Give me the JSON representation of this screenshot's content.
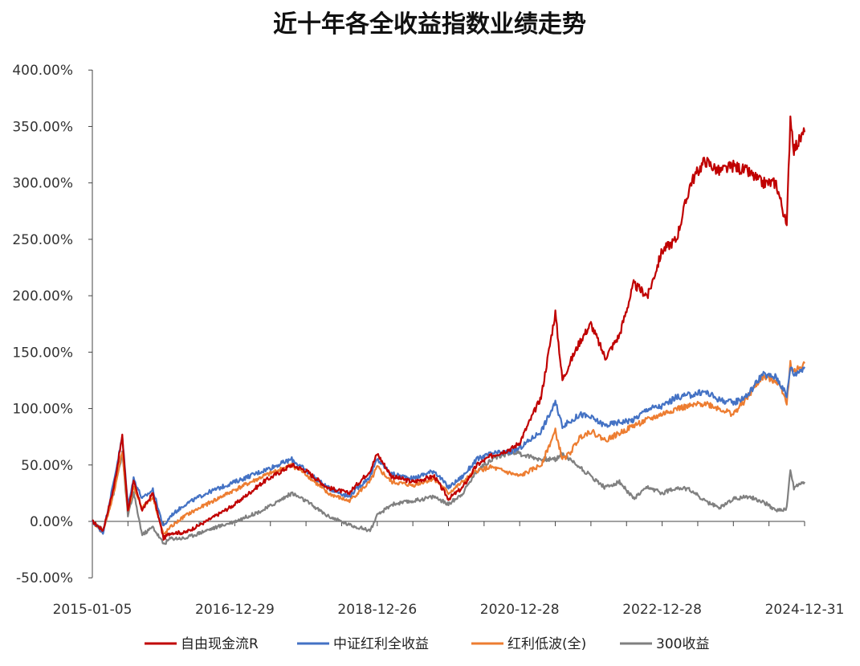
{
  "chart_data": {
    "type": "line",
    "title": "近十年各全收益指数业绩走势",
    "xlabel": "",
    "ylabel": "",
    "ylim": [
      -50,
      400
    ],
    "y_ticks": [
      -50,
      0,
      50,
      100,
      150,
      200,
      250,
      300,
      350,
      400
    ],
    "y_tick_labels": [
      "-50.00%",
      "0.00%",
      "50.00%",
      "100.00%",
      "150.00%",
      "200.00%",
      "250.00%",
      "300.00%",
      "350.00%",
      "400.00%"
    ],
    "x_range": [
      2015.0,
      2025.0
    ],
    "x_tick_labels": [
      "2015-01-05",
      "2016-12-29",
      "2018-12-26",
      "2020-12-28",
      "2022-12-28",
      "2024-12-31"
    ],
    "x_tick_positions": [
      2015.0,
      2017.0,
      2019.0,
      2021.0,
      2023.0,
      2025.0
    ],
    "legend_position": "bottom",
    "series": [
      {
        "name": "自由现金流R",
        "color": "#c00000",
        "x": [
          2015.0,
          2015.15,
          2015.3,
          2015.42,
          2015.5,
          2015.58,
          2015.7,
          2015.85,
          2016.0,
          2016.1,
          2016.3,
          2016.6,
          2017.0,
          2017.4,
          2017.8,
          2018.0,
          2018.3,
          2018.6,
          2018.9,
          2019.0,
          2019.2,
          2019.5,
          2019.8,
          2020.0,
          2020.2,
          2020.4,
          2020.6,
          2020.9,
          2021.0,
          2021.3,
          2021.5,
          2021.6,
          2021.7,
          2021.85,
          2022.0,
          2022.2,
          2022.4,
          2022.6,
          2022.8,
          2023.0,
          2023.2,
          2023.4,
          2023.6,
          2023.8,
          2024.0,
          2024.2,
          2024.4,
          2024.6,
          2024.7,
          2024.75,
          2024.8,
          2024.85,
          2025.0
        ],
        "values": [
          0,
          -8,
          30,
          75,
          10,
          35,
          10,
          25,
          -15,
          -10,
          -10,
          0,
          15,
          35,
          50,
          45,
          30,
          25,
          45,
          60,
          40,
          35,
          40,
          20,
          30,
          50,
          58,
          65,
          70,
          110,
          185,
          125,
          140,
          160,
          175,
          145,
          165,
          210,
          200,
          240,
          250,
          300,
          320,
          310,
          315,
          310,
          300,
          300,
          275,
          260,
          360,
          330,
          345
        ]
      },
      {
        "name": "中证红利全收益",
        "color": "#4472c4",
        "x": [
          2015.0,
          2015.15,
          2015.3,
          2015.42,
          2015.5,
          2015.58,
          2015.7,
          2015.85,
          2016.0,
          2016.1,
          2016.3,
          2016.6,
          2017.0,
          2017.4,
          2017.8,
          2018.0,
          2018.3,
          2018.6,
          2018.9,
          2019.0,
          2019.2,
          2019.5,
          2019.8,
          2020.0,
          2020.2,
          2020.4,
          2020.6,
          2020.9,
          2021.0,
          2021.3,
          2021.5,
          2021.6,
          2021.7,
          2021.85,
          2022.0,
          2022.2,
          2022.4,
          2022.6,
          2022.8,
          2023.0,
          2023.2,
          2023.4,
          2023.6,
          2023.8,
          2024.0,
          2024.2,
          2024.4,
          2024.6,
          2024.7,
          2024.75,
          2024.8,
          2024.85,
          2025.0
        ],
        "values": [
          0,
          -10,
          35,
          75,
          15,
          38,
          20,
          28,
          -5,
          5,
          15,
          25,
          35,
          45,
          55,
          45,
          30,
          22,
          40,
          55,
          42,
          38,
          45,
          30,
          40,
          55,
          60,
          62,
          65,
          80,
          105,
          85,
          88,
          95,
          92,
          85,
          88,
          90,
          100,
          102,
          110,
          112,
          115,
          108,
          105,
          112,
          130,
          128,
          118,
          110,
          138,
          130,
          137
        ]
      },
      {
        "name": "红利低波(全)",
        "color": "#ed7d31",
        "x": [
          2015.0,
          2015.15,
          2015.3,
          2015.42,
          2015.5,
          2015.58,
          2015.7,
          2015.85,
          2016.0,
          2016.1,
          2016.3,
          2016.6,
          2017.0,
          2017.4,
          2017.8,
          2018.0,
          2018.3,
          2018.6,
          2018.9,
          2019.0,
          2019.2,
          2019.5,
          2019.8,
          2020.0,
          2020.2,
          2020.4,
          2020.6,
          2020.9,
          2021.0,
          2021.3,
          2021.5,
          2021.6,
          2021.7,
          2021.85,
          2022.0,
          2022.2,
          2022.4,
          2022.6,
          2022.8,
          2023.0,
          2023.2,
          2023.4,
          2023.6,
          2023.8,
          2024.0,
          2024.2,
          2024.4,
          2024.6,
          2024.7,
          2024.75,
          2024.8,
          2024.85,
          2025.0
        ],
        "values": [
          0,
          -10,
          25,
          62,
          8,
          30,
          12,
          22,
          -12,
          -5,
          5,
          15,
          28,
          40,
          50,
          42,
          25,
          18,
          35,
          48,
          35,
          32,
          38,
          25,
          35,
          45,
          48,
          42,
          40,
          50,
          80,
          55,
          60,
          75,
          80,
          72,
          78,
          85,
          90,
          95,
          100,
          102,
          105,
          100,
          95,
          110,
          128,
          125,
          115,
          105,
          140,
          132,
          140
        ]
      },
      {
        "name": "300收益",
        "color": "#808080",
        "x": [
          2015.0,
          2015.15,
          2015.3,
          2015.42,
          2015.5,
          2015.58,
          2015.7,
          2015.85,
          2016.0,
          2016.1,
          2016.3,
          2016.6,
          2017.0,
          2017.4,
          2017.8,
          2018.0,
          2018.3,
          2018.6,
          2018.9,
          2019.0,
          2019.2,
          2019.5,
          2019.8,
          2020.0,
          2020.2,
          2020.4,
          2020.6,
          2020.9,
          2021.0,
          2021.3,
          2021.5,
          2021.6,
          2021.7,
          2021.85,
          2022.0,
          2022.2,
          2022.4,
          2022.6,
          2022.8,
          2023.0,
          2023.2,
          2023.4,
          2023.6,
          2023.8,
          2024.0,
          2024.2,
          2024.4,
          2024.6,
          2024.7,
          2024.75,
          2024.8,
          2024.85,
          2025.0
        ],
        "values": [
          0,
          -8,
          25,
          60,
          5,
          25,
          -12,
          -5,
          -20,
          -15,
          -15,
          -8,
          0,
          10,
          25,
          18,
          5,
          -3,
          -8,
          5,
          15,
          18,
          22,
          15,
          25,
          45,
          55,
          62,
          60,
          55,
          55,
          60,
          55,
          48,
          40,
          30,
          35,
          20,
          30,
          25,
          30,
          28,
          18,
          12,
          20,
          22,
          18,
          10,
          10,
          12,
          45,
          30,
          35
        ]
      }
    ]
  }
}
